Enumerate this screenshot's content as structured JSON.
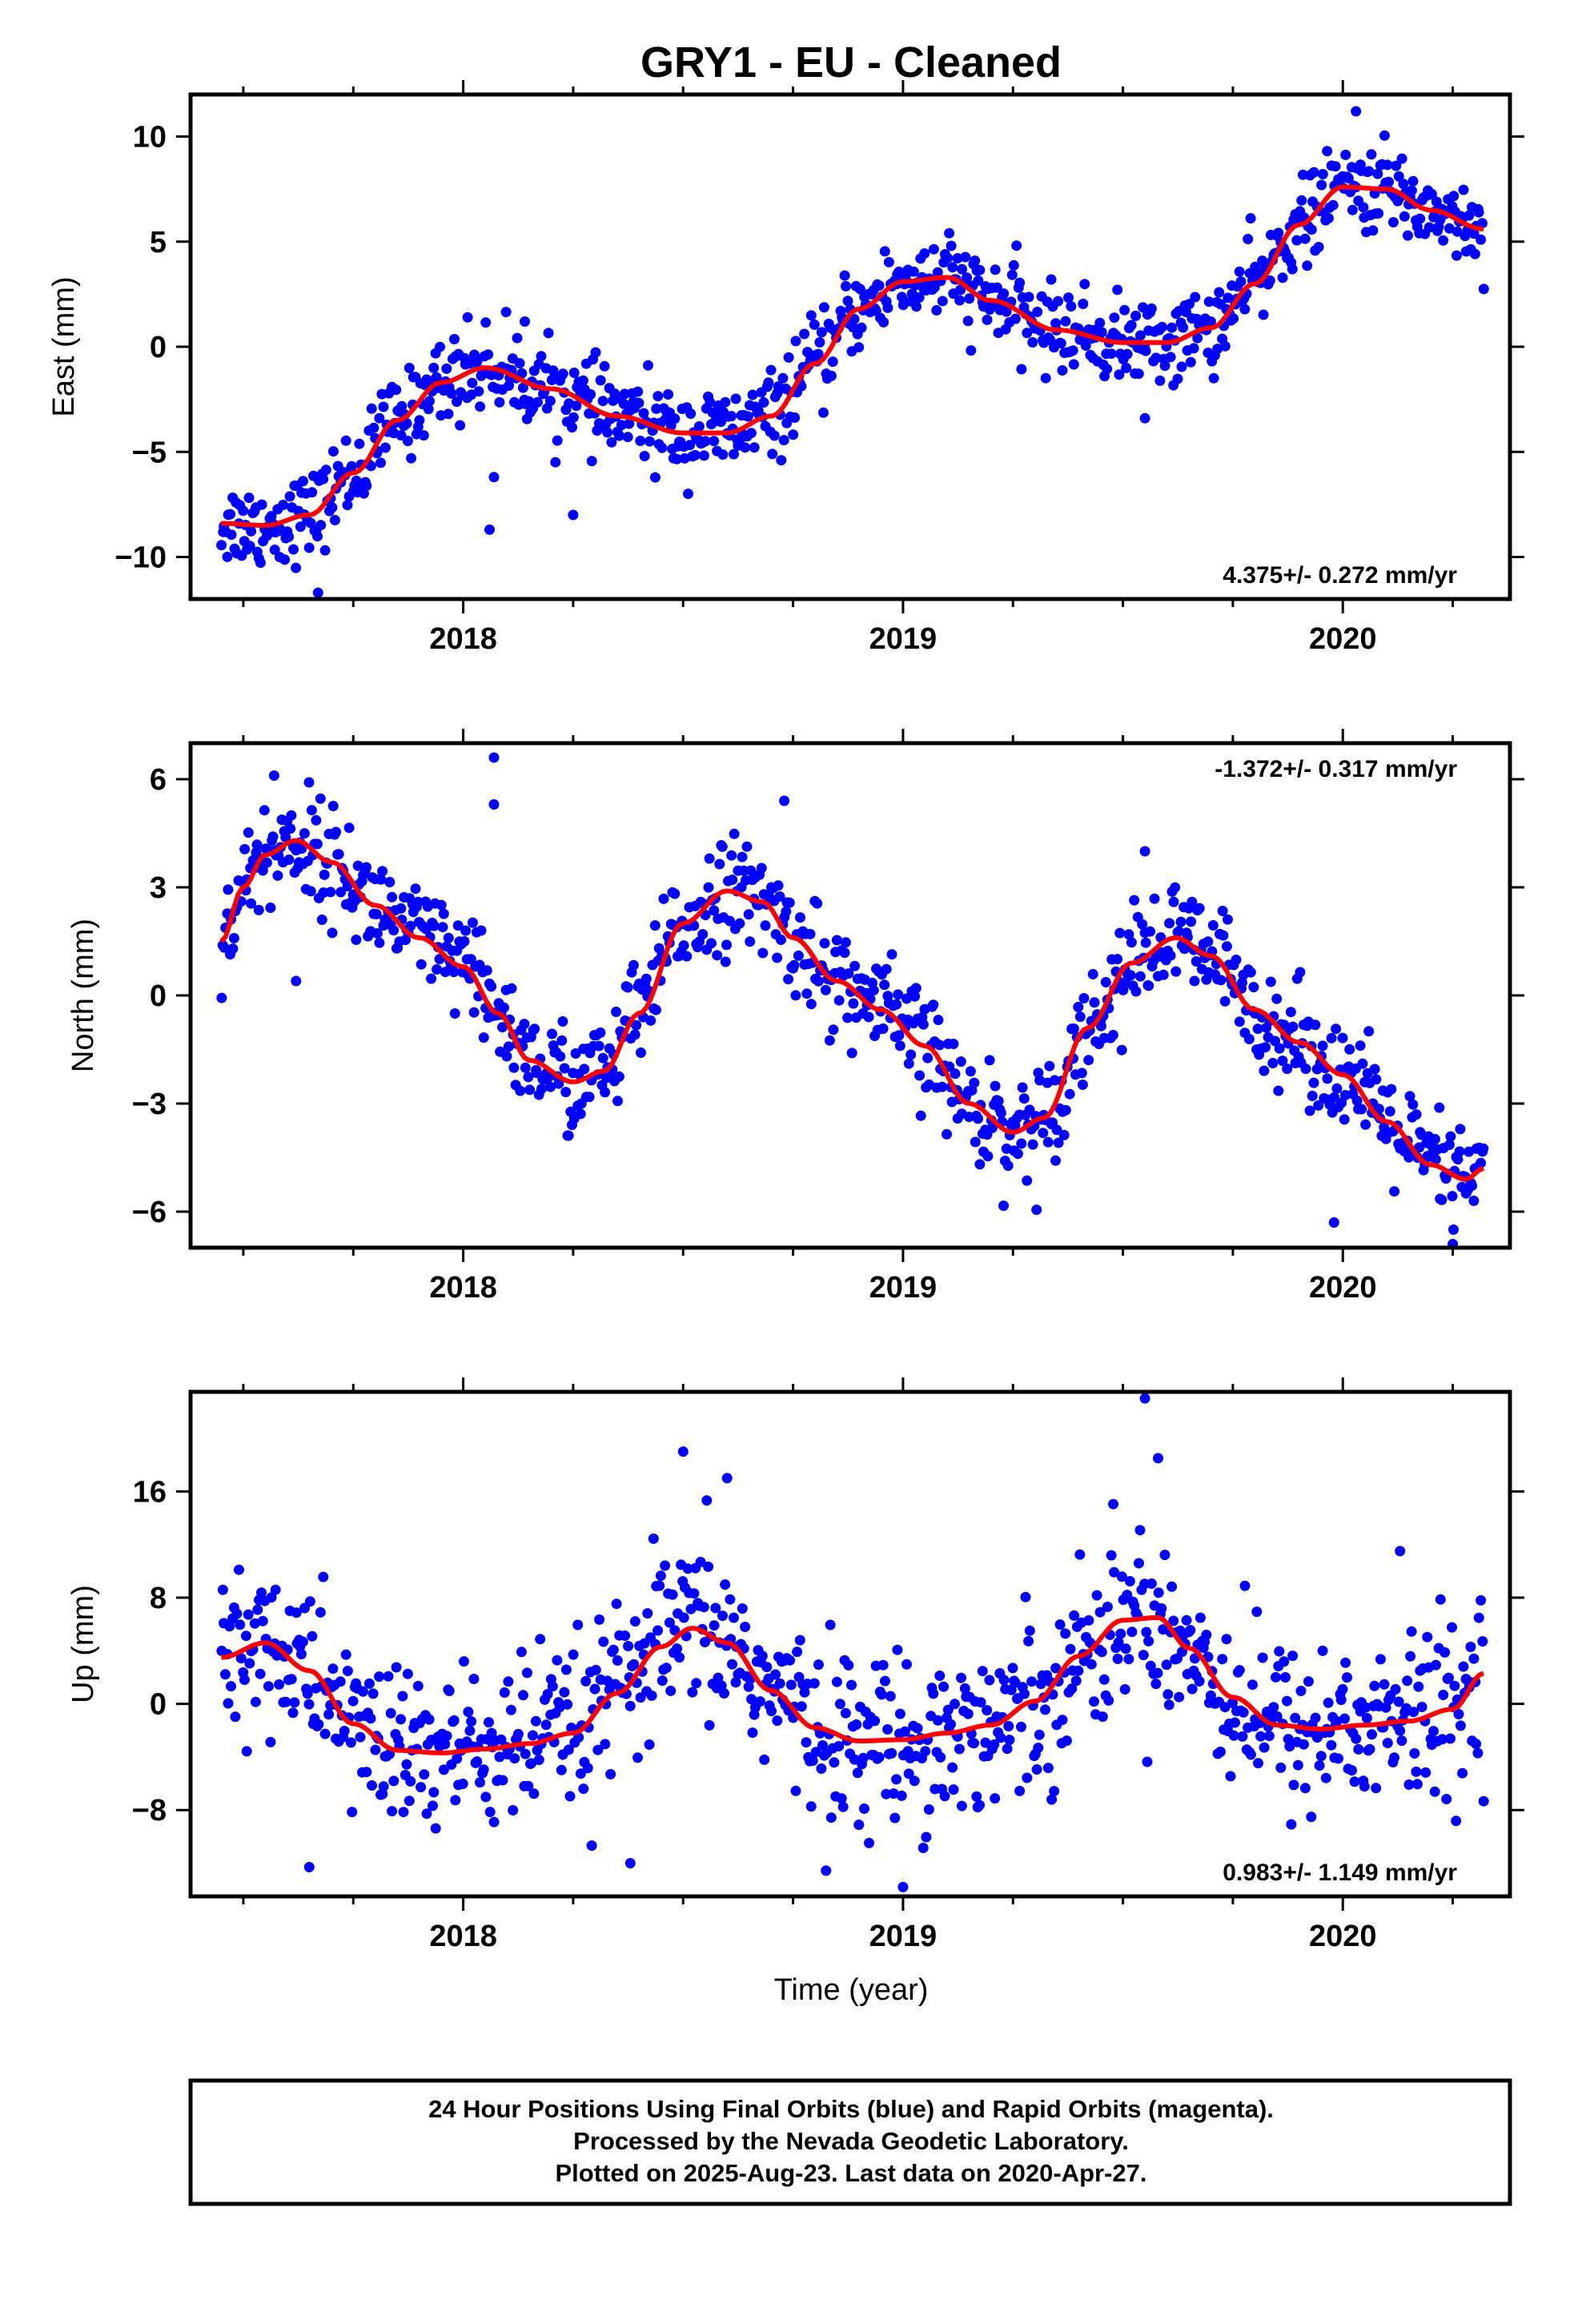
{
  "title": "GRY1  - EU - Cleaned",
  "colors": {
    "final_orbits": "#0000ff",
    "fit_line": "#ff0000",
    "frame": "#000000"
  },
  "footer": {
    "line1": "24 Hour Positions Using Final Orbits (blue) and Rapid Orbits (magenta).",
    "line2": "Processed by the Nevada Geodetic Laboratory.",
    "line3": "Plotted on 2025-Aug-23. Last data on 2020-Apr-27."
  },
  "chart_data": [
    {
      "type": "scatter",
      "component": "east",
      "ylabel": "East (mm)",
      "xlabel": "",
      "rate_text": "4.375+/- 0.272 mm/yr",
      "rate_position": "bottom-right",
      "xlim": [
        2017.38,
        2020.38
      ],
      "ylim": [
        -12,
        12
      ],
      "x_ticks": [
        2018,
        2019,
        2020
      ],
      "y_ticks": [
        -10,
        -5,
        0,
        5,
        10
      ],
      "y_tick_labels": [
        "−10",
        "−5",
        "0",
        "5",
        "10"
      ],
      "fit": {
        "x": [
          2017.45,
          2017.55,
          2017.65,
          2017.75,
          2017.85,
          2017.95,
          2018.05,
          2018.2,
          2018.35,
          2018.5,
          2018.6,
          2018.7,
          2018.8,
          2018.9,
          2019.0,
          2019.1,
          2019.2,
          2019.35,
          2019.5,
          2019.6,
          2019.7,
          2019.8,
          2019.9,
          2020.0,
          2020.1,
          2020.2,
          2020.32
        ],
        "y": [
          -8.4,
          -8.5,
          -8.0,
          -6.0,
          -3.5,
          -1.7,
          -1.0,
          -2.0,
          -3.3,
          -4.1,
          -4.1,
          -3.3,
          -0.8,
          1.8,
          3.1,
          3.3,
          2.2,
          0.8,
          0.2,
          0.2,
          0.9,
          3.0,
          5.8,
          7.6,
          7.5,
          6.5,
          5.6
        ]
      },
      "scatter_sd": 1.0,
      "extra_points": [
        {
          "x": 2018.06,
          "y": -8.7
        },
        {
          "x": 2018.07,
          "y": -6.2
        },
        {
          "x": 2017.67,
          "y": -11.7
        },
        {
          "x": 2018.25,
          "y": -8.0
        },
        {
          "x": 2019.55,
          "y": -3.4
        },
        {
          "x": 2020.03,
          "y": 11.2
        },
        {
          "x": 2018.01,
          "y": 1.4
        },
        {
          "x": 2018.14,
          "y": 1.2
        }
      ]
    },
    {
      "type": "scatter",
      "component": "north",
      "ylabel": "North (mm)",
      "xlabel": "",
      "rate_text": "-1.372+/- 0.317 mm/yr",
      "rate_position": "top-right",
      "xlim": [
        2017.38,
        2020.38
      ],
      "ylim": [
        -7,
        7
      ],
      "x_ticks": [
        2018,
        2019,
        2020
      ],
      "y_ticks": [
        -6,
        -3,
        0,
        3,
        6
      ],
      "y_tick_labels": [
        "−6",
        "−3",
        "0",
        "3",
        "6"
      ],
      "fit": {
        "x": [
          2017.45,
          2017.5,
          2017.55,
          2017.62,
          2017.7,
          2017.8,
          2017.9,
          2018.0,
          2018.08,
          2018.15,
          2018.25,
          2018.32,
          2018.4,
          2018.5,
          2018.6,
          2018.68,
          2018.75,
          2018.85,
          2018.95,
          2019.05,
          2019.15,
          2019.25,
          2019.32,
          2019.42,
          2019.52,
          2019.62,
          2019.7,
          2019.8,
          2019.9,
          2020.0,
          2020.1,
          2020.2,
          2020.28,
          2020.32
        ],
        "y": [
          1.5,
          3.0,
          3.9,
          4.3,
          3.7,
          2.5,
          1.6,
          0.8,
          -0.5,
          -1.8,
          -2.4,
          -2.1,
          -0.5,
          2.0,
          2.9,
          2.6,
          1.6,
          0.4,
          -0.4,
          -1.4,
          -3.0,
          -3.8,
          -3.4,
          -0.9,
          0.9,
          1.6,
          1.1,
          -0.4,
          -1.3,
          -2.2,
          -3.5,
          -4.7,
          -5.1,
          -4.8
        ]
      },
      "scatter_sd": 0.75,
      "extra_points": [
        {
          "x": 2018.07,
          "y": 6.6
        },
        {
          "x": 2018.07,
          "y": 5.3
        },
        {
          "x": 2017.62,
          "y": 0.4
        },
        {
          "x": 2019.55,
          "y": 4.0
        },
        {
          "x": 2019.98,
          "y": -6.3
        },
        {
          "x": 2020.25,
          "y": -6.9
        },
        {
          "x": 2018.73,
          "y": 5.4
        },
        {
          "x": 2017.57,
          "y": 6.1
        }
      ]
    },
    {
      "type": "scatter",
      "component": "up",
      "ylabel": "Up (mm)",
      "xlabel": "Time (year)",
      "rate_text": "0.983+/- 1.149 mm/yr",
      "rate_position": "bottom-right",
      "xlim": [
        2017.38,
        2020.38
      ],
      "ylim": [
        -14.5,
        23.5
      ],
      "x_ticks": [
        2018,
        2019,
        2020
      ],
      "y_ticks": [
        -8,
        0,
        8,
        16
      ],
      "y_tick_labels": [
        "−8",
        "0",
        "8",
        "16"
      ],
      "fit": {
        "x": [
          2017.45,
          2017.55,
          2017.65,
          2017.75,
          2017.85,
          2017.95,
          2018.05,
          2018.15,
          2018.25,
          2018.35,
          2018.45,
          2018.52,
          2018.6,
          2018.7,
          2018.8,
          2018.9,
          2019.0,
          2019.1,
          2019.2,
          2019.3,
          2019.4,
          2019.5,
          2019.58,
          2019.65,
          2019.75,
          2019.85,
          2019.95,
          2020.05,
          2020.15,
          2020.25,
          2020.32
        ],
        "y": [
          3.5,
          4.6,
          2.5,
          -1.5,
          -3.5,
          -3.7,
          -3.4,
          -3.0,
          -2.2,
          0.8,
          4.3,
          5.7,
          4.6,
          1.0,
          -1.8,
          -2.8,
          -2.7,
          -2.2,
          -1.6,
          0.2,
          3.6,
          6.3,
          6.5,
          4.2,
          0.5,
          -1.6,
          -1.9,
          -1.6,
          -1.3,
          -0.4,
          2.3
        ]
      },
      "scatter_sd": 3.2,
      "extra_points": [
        {
          "x": 2018.5,
          "y": 19.0
        },
        {
          "x": 2018.6,
          "y": 17.0
        },
        {
          "x": 2019.55,
          "y": 23.0
        },
        {
          "x": 2019.58,
          "y": 18.5
        },
        {
          "x": 2019.0,
          "y": -13.8
        },
        {
          "x": 2017.65,
          "y": -12.3
        },
        {
          "x": 2020.13,
          "y": 11.5
        },
        {
          "x": 2018.38,
          "y": -12.0
        }
      ]
    }
  ]
}
